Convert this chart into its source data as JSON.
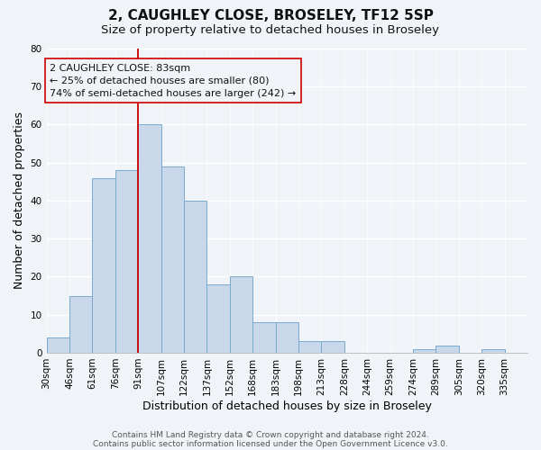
{
  "title": "2, CAUGHLEY CLOSE, BROSELEY, TF12 5SP",
  "subtitle": "Size of property relative to detached houses in Broseley",
  "xlabel": "Distribution of detached houses by size in Broseley",
  "ylabel": "Number of detached properties",
  "bin_labels": [
    "30sqm",
    "46sqm",
    "61sqm",
    "76sqm",
    "91sqm",
    "107sqm",
    "122sqm",
    "137sqm",
    "152sqm",
    "168sqm",
    "183sqm",
    "198sqm",
    "213sqm",
    "228sqm",
    "244sqm",
    "259sqm",
    "274sqm",
    "289sqm",
    "305sqm",
    "320sqm",
    "335sqm"
  ],
  "bar_heights": [
    4,
    15,
    46,
    48,
    60,
    49,
    40,
    18,
    20,
    8,
    8,
    3,
    3,
    0,
    0,
    0,
    1,
    2,
    0,
    1,
    0
  ],
  "bar_color": "#c8d8ea",
  "bar_edge_color": "#7aaacf",
  "ylim": [
    0,
    80
  ],
  "yticks": [
    0,
    10,
    20,
    30,
    40,
    50,
    60,
    70,
    80
  ],
  "vline_x_index": 4,
  "vline_color": "#cc0000",
  "annotation_title": "2 CAUGHLEY CLOSE: 83sqm",
  "annotation_line1": "← 25% of detached houses are smaller (80)",
  "annotation_line2": "74% of semi-detached houses are larger (242) →",
  "footer_line1": "Contains HM Land Registry data © Crown copyright and database right 2024.",
  "footer_line2": "Contains public sector information licensed under the Open Government Licence v3.0.",
  "background_color": "#f0f4f8",
  "grid_color": "#ffffff",
  "title_fontsize": 11,
  "subtitle_fontsize": 9.5,
  "axis_label_fontsize": 9,
  "tick_fontsize": 7.5,
  "annotation_fontsize": 8,
  "footer_fontsize": 6.5
}
